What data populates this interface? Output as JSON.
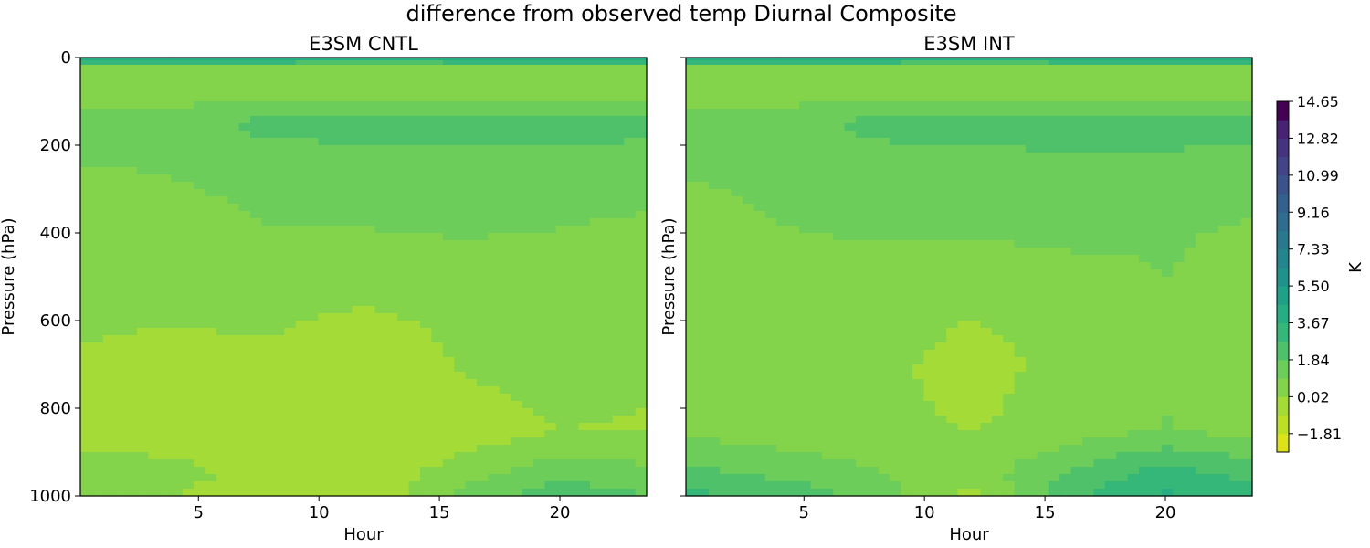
{
  "chart_data": {
    "type": "heatmap",
    "title": "difference from observed temp Diurnal Composite",
    "colorbar": {
      "label": "K",
      "ticks": [
        "14.65",
        "12.82",
        "10.99",
        "9.16",
        "7.33",
        "5.50",
        "3.67",
        "1.84",
        "0.02",
        "−1.81"
      ],
      "levels": [
        -2.73,
        -1.81,
        -0.9,
        0.02,
        0.93,
        1.84,
        2.76,
        3.67,
        4.59,
        5.5,
        6.42,
        7.33,
        8.24,
        9.16,
        10.07,
        10.99,
        11.9,
        12.82,
        13.73,
        14.65
      ],
      "colors": [
        "#dde318",
        "#bddf26",
        "#a5db36",
        "#84d44b",
        "#6ccd5a",
        "#4fc16b",
        "#35b779",
        "#26ad81",
        "#1fa187",
        "#21918c",
        "#25858e",
        "#2a788e",
        "#2f6c8e",
        "#355f8d",
        "#3b528b",
        "#414487",
        "#46337f",
        "#482374",
        "#440154"
      ]
    },
    "panels": [
      {
        "title": "E3SM CNTL",
        "xlabel": "Hour",
        "ylabel": "Pressure (hPa)",
        "xlim": [
          0.1,
          23.6
        ],
        "ylim": [
          1000,
          0
        ],
        "xticks": [
          "5",
          "10",
          "15",
          "20"
        ],
        "yticks": [
          "0",
          "200",
          "400",
          "600",
          "800",
          "1000"
        ],
        "hours": [
          0,
          4,
          8,
          12,
          16,
          20,
          24
        ],
        "pressure": [
          0,
          25,
          80,
          150,
          250,
          400,
          550,
          700,
          850,
          950,
          1000
        ],
        "values": [
          [
            4.0,
            4.0,
            4.0,
            4.0,
            4.0,
            4.0,
            4.0
          ],
          [
            0.3,
            0.3,
            0.3,
            0.2,
            0.3,
            0.3,
            0.3
          ],
          [
            0.5,
            0.5,
            0.5,
            0.6,
            0.6,
            0.6,
            0.5
          ],
          [
            1.2,
            1.4,
            2.2,
            2.4,
            2.5,
            2.4,
            2.2
          ],
          [
            0.9,
            1.0,
            1.2,
            1.2,
            1.3,
            1.3,
            1.2
          ],
          [
            0.0,
            0.6,
            0.9,
            0.9,
            1.0,
            0.9,
            0.8
          ],
          [
            0.1,
            0.2,
            0.2,
            0.1,
            0.2,
            0.3,
            0.2
          ],
          [
            0.0,
            -0.2,
            -0.1,
            -0.5,
            0.1,
            0.7,
            0.2
          ],
          [
            -0.2,
            -0.3,
            -0.4,
            -0.9,
            -0.6,
            0.0,
            -0.1
          ],
          [
            0.3,
            0.2,
            -0.2,
            -0.7,
            0.6,
            1.6,
            1.2
          ],
          [
            0.2,
            0.0,
            -0.3,
            -0.8,
            1.2,
            2.4,
            1.8
          ]
        ]
      },
      {
        "title": "E3SM INT",
        "xlabel": "Hour",
        "ylabel": "Pressure (hPa)",
        "xlim": [
          0.1,
          23.6
        ],
        "ylim": [
          1000,
          0
        ],
        "xticks": [
          "5",
          "10",
          "15",
          "20"
        ],
        "yticks": [
          "0",
          "200",
          "400",
          "600",
          "800",
          "1000"
        ],
        "hours": [
          0,
          4,
          8,
          12,
          16,
          20,
          24
        ],
        "pressure": [
          0,
          25,
          80,
          150,
          250,
          400,
          550,
          700,
          850,
          950,
          1000
        ],
        "values": [
          [
            4.0,
            4.0,
            4.0,
            4.0,
            4.0,
            4.0,
            4.0
          ],
          [
            0.3,
            0.3,
            0.3,
            0.2,
            0.3,
            0.3,
            0.3
          ],
          [
            0.5,
            0.5,
            0.5,
            0.6,
            0.6,
            0.6,
            0.5
          ],
          [
            1.2,
            1.4,
            2.2,
            2.4,
            2.5,
            2.4,
            2.2
          ],
          [
            1.0,
            1.1,
            1.3,
            1.3,
            1.5,
            1.5,
            1.3
          ],
          [
            0.6,
            0.9,
            1.0,
            1.0,
            1.1,
            1.0,
            0.8
          ],
          [
            0.2,
            0.3,
            0.6,
            0.2,
            0.5,
            0.9,
            0.7
          ],
          [
            0.0,
            0.2,
            0.3,
            -0.4,
            0.4,
            0.7,
            0.3
          ],
          [
            0.7,
            0.4,
            0.2,
            0.0,
            0.4,
            1.0,
            0.4
          ],
          [
            2.2,
            1.6,
            1.0,
            0.4,
            2.0,
            3.2,
            2.4
          ],
          [
            3.0,
            2.6,
            1.4,
            -0.4,
            2.6,
            3.8,
            3.0
          ]
        ]
      }
    ]
  }
}
